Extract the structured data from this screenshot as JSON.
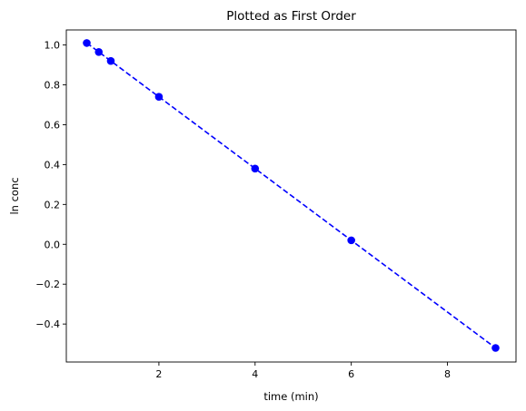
{
  "chart_data": {
    "type": "scatter",
    "title": "Plotted as First Order",
    "xlabel": "time (min)",
    "ylabel": "ln conc",
    "xlim": [
      0.075,
      9.425
    ],
    "ylim": [
      -0.5905,
      1.0755
    ],
    "xticks": [
      2,
      4,
      6,
      8
    ],
    "xtick_labels": [
      "2",
      "4",
      "6",
      "8"
    ],
    "yticks": [
      -0.4,
      -0.2,
      0.0,
      0.2,
      0.4,
      0.6,
      0.8,
      1.0
    ],
    "ytick_labels": [
      "−0.4",
      "−0.2",
      "0.0",
      "0.2",
      "0.4",
      "0.6",
      "0.8",
      "1.0"
    ],
    "grid": false,
    "series": [
      {
        "style": "markers",
        "color": "#0000ff",
        "x": [
          0.5,
          0.75,
          1.0,
          2.0,
          4.0,
          6.0,
          9.0
        ],
        "y": [
          1.01,
          0.965,
          0.92,
          0.74,
          0.38,
          0.02,
          -0.52
        ]
      },
      {
        "style": "dashed-line",
        "color": "#0000ff",
        "x": [
          0.5,
          0.75,
          1.0,
          2.0,
          4.0,
          6.0,
          9.0
        ],
        "y": [
          1.01,
          0.965,
          0.92,
          0.74,
          0.38,
          0.02,
          -0.52
        ]
      }
    ]
  }
}
